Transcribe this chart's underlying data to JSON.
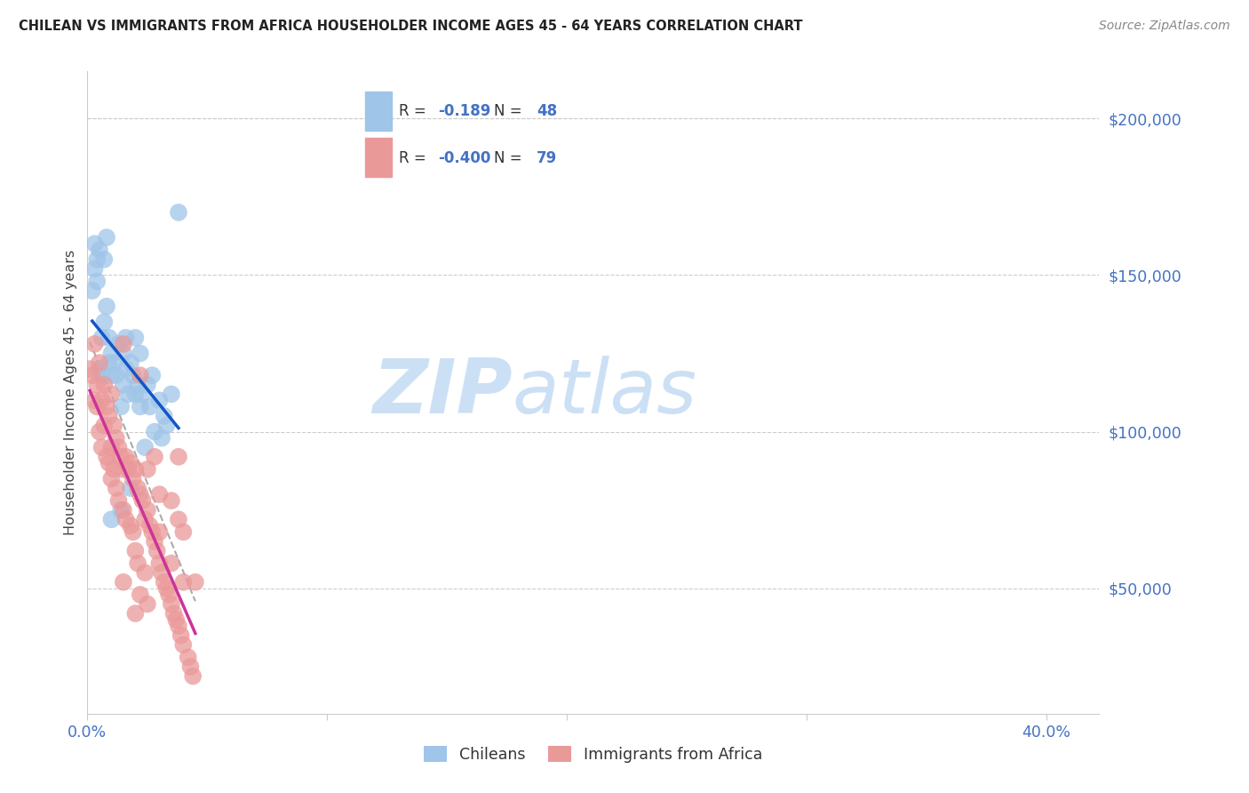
{
  "title": "CHILEAN VS IMMIGRANTS FROM AFRICA HOUSEHOLDER INCOME AGES 45 - 64 YEARS CORRELATION CHART",
  "source": "Source: ZipAtlas.com",
  "ylabel": "Householder Income Ages 45 - 64 years",
  "legend": {
    "chilean_R": "-0.189",
    "chilean_N": "48",
    "africa_R": "-0.400",
    "africa_N": "79"
  },
  "yticks": [
    50000,
    100000,
    150000,
    200000
  ],
  "ytick_labels": [
    "$50,000",
    "$100,000",
    "$150,000",
    "$200,000"
  ],
  "xmin": 0.0,
  "xmax": 0.4,
  "ymin": 10000,
  "ymax": 215000,
  "blue_scatter_color": "#9fc5e8",
  "pink_scatter_color": "#ea9999",
  "blue_line_color": "#1155cc",
  "pink_line_color": "#cc3399",
  "dash_line_color": "#aaaaaa",
  "axis_label_color": "#4472c4",
  "title_color": "#222222",
  "source_color": "#888888",
  "legend_blue_fill": "#9fc5e8",
  "legend_pink_fill": "#ea9999",
  "chilean_dots": [
    [
      0.002,
      145000
    ],
    [
      0.003,
      152000
    ],
    [
      0.003,
      160000
    ],
    [
      0.004,
      148000
    ],
    [
      0.004,
      155000
    ],
    [
      0.005,
      158000
    ],
    [
      0.005,
      120000
    ],
    [
      0.006,
      130000
    ],
    [
      0.006,
      118000
    ],
    [
      0.007,
      135000
    ],
    [
      0.007,
      155000
    ],
    [
      0.008,
      140000
    ],
    [
      0.008,
      162000
    ],
    [
      0.009,
      130000
    ],
    [
      0.009,
      122000
    ],
    [
      0.01,
      125000
    ],
    [
      0.01,
      118000
    ],
    [
      0.01,
      72000
    ],
    [
      0.011,
      122000
    ],
    [
      0.012,
      118000
    ],
    [
      0.013,
      128000
    ],
    [
      0.014,
      108000
    ],
    [
      0.014,
      75000
    ],
    [
      0.015,
      125000
    ],
    [
      0.015,
      115000
    ],
    [
      0.016,
      120000
    ],
    [
      0.016,
      130000
    ],
    [
      0.017,
      112000
    ],
    [
      0.018,
      122000
    ],
    [
      0.018,
      82000
    ],
    [
      0.019,
      118000
    ],
    [
      0.02,
      112000
    ],
    [
      0.02,
      130000
    ],
    [
      0.021,
      115000
    ],
    [
      0.022,
      108000
    ],
    [
      0.022,
      125000
    ],
    [
      0.023,
      112000
    ],
    [
      0.024,
      95000
    ],
    [
      0.025,
      115000
    ],
    [
      0.026,
      108000
    ],
    [
      0.027,
      118000
    ],
    [
      0.028,
      100000
    ],
    [
      0.03,
      110000
    ],
    [
      0.031,
      98000
    ],
    [
      0.032,
      105000
    ],
    [
      0.033,
      102000
    ],
    [
      0.035,
      112000
    ],
    [
      0.038,
      170000
    ]
  ],
  "africa_dots": [
    [
      0.001,
      120000
    ],
    [
      0.002,
      118000
    ],
    [
      0.003,
      128000
    ],
    [
      0.003,
      110000
    ],
    [
      0.004,
      115000
    ],
    [
      0.004,
      108000
    ],
    [
      0.005,
      122000
    ],
    [
      0.005,
      100000
    ],
    [
      0.006,
      110000
    ],
    [
      0.006,
      95000
    ],
    [
      0.007,
      115000
    ],
    [
      0.007,
      102000
    ],
    [
      0.008,
      108000
    ],
    [
      0.008,
      92000
    ],
    [
      0.009,
      105000
    ],
    [
      0.009,
      90000
    ],
    [
      0.01,
      112000
    ],
    [
      0.01,
      95000
    ],
    [
      0.011,
      102000
    ],
    [
      0.011,
      88000
    ],
    [
      0.012,
      98000
    ],
    [
      0.012,
      82000
    ],
    [
      0.013,
      95000
    ],
    [
      0.013,
      78000
    ],
    [
      0.014,
      92000
    ],
    [
      0.015,
      128000
    ],
    [
      0.015,
      88000
    ],
    [
      0.015,
      75000
    ],
    [
      0.016,
      92000
    ],
    [
      0.016,
      72000
    ],
    [
      0.017,
      88000
    ],
    [
      0.018,
      90000
    ],
    [
      0.018,
      70000
    ],
    [
      0.019,
      85000
    ],
    [
      0.019,
      68000
    ],
    [
      0.02,
      88000
    ],
    [
      0.02,
      62000
    ],
    [
      0.021,
      82000
    ],
    [
      0.021,
      58000
    ],
    [
      0.022,
      80000
    ],
    [
      0.022,
      118000
    ],
    [
      0.022,
      48000
    ],
    [
      0.023,
      78000
    ],
    [
      0.024,
      72000
    ],
    [
      0.025,
      88000
    ],
    [
      0.025,
      75000
    ],
    [
      0.026,
      70000
    ],
    [
      0.027,
      68000
    ],
    [
      0.028,
      92000
    ],
    [
      0.028,
      65000
    ],
    [
      0.029,
      62000
    ],
    [
      0.03,
      68000
    ],
    [
      0.03,
      58000
    ],
    [
      0.031,
      55000
    ],
    [
      0.032,
      52000
    ],
    [
      0.033,
      50000
    ],
    [
      0.034,
      48000
    ],
    [
      0.035,
      78000
    ],
    [
      0.035,
      45000
    ],
    [
      0.036,
      42000
    ],
    [
      0.037,
      40000
    ],
    [
      0.038,
      38000
    ],
    [
      0.038,
      72000
    ],
    [
      0.039,
      35000
    ],
    [
      0.04,
      68000
    ],
    [
      0.04,
      32000
    ],
    [
      0.042,
      28000
    ],
    [
      0.043,
      25000
    ],
    [
      0.044,
      22000
    ],
    [
      0.024,
      55000
    ],
    [
      0.03,
      80000
    ],
    [
      0.035,
      58000
    ],
    [
      0.04,
      52000
    ],
    [
      0.038,
      92000
    ],
    [
      0.01,
      85000
    ],
    [
      0.045,
      52000
    ],
    [
      0.02,
      42000
    ],
    [
      0.015,
      52000
    ],
    [
      0.025,
      45000
    ]
  ]
}
